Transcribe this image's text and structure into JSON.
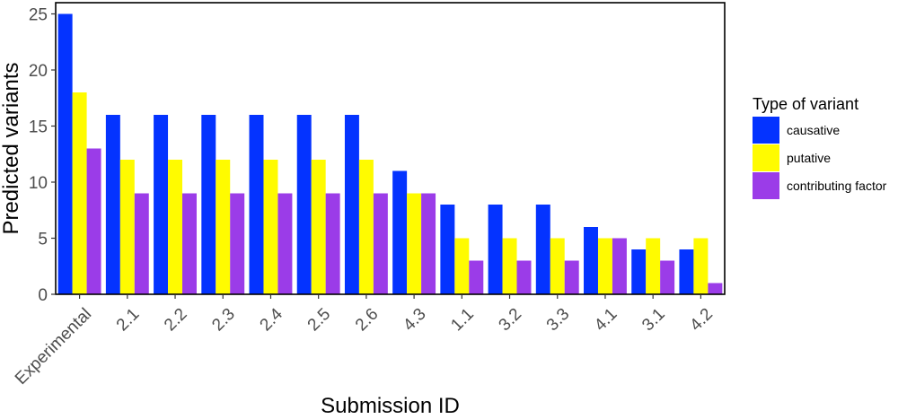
{
  "chart_data": {
    "type": "bar",
    "xlabel": "Submission ID",
    "ylabel": "Predicted variants",
    "ylim": [
      0,
      26
    ],
    "yticks": [
      0,
      5,
      10,
      15,
      20,
      25
    ],
    "grid": false,
    "legend_placement": "right",
    "legend_title": "Type of variant",
    "categories": [
      "Experimental",
      "2.1",
      "2.2",
      "2.3",
      "2.4",
      "2.5",
      "2.6",
      "4.3",
      "1.1",
      "3.2",
      "3.3",
      "4.1",
      "3.1",
      "4.2"
    ],
    "series": [
      {
        "name": "causative",
        "color": "#0433ff",
        "values": [
          25,
          16,
          16,
          16,
          16,
          16,
          16,
          11,
          8,
          8,
          8,
          6,
          4,
          4
        ]
      },
      {
        "name": "putative",
        "color": "#fffb00",
        "values": [
          18,
          12,
          12,
          12,
          12,
          12,
          12,
          9,
          5,
          5,
          5,
          5,
          5,
          5
        ]
      },
      {
        "name": "contributing factor",
        "color": "#9b3ce8",
        "values": [
          13,
          9,
          9,
          9,
          9,
          9,
          9,
          9,
          3,
          3,
          3,
          5,
          3,
          1
        ]
      }
    ]
  }
}
